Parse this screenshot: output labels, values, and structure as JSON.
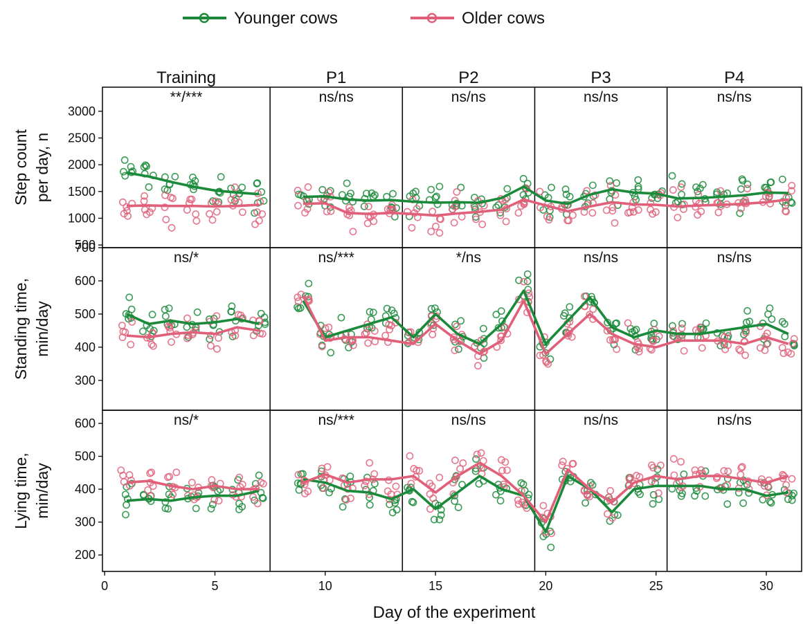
{
  "chart_data": {
    "type": "line",
    "xlabel": "Day of the experiment",
    "x_ticks": [
      0,
      5,
      10,
      15,
      20,
      25,
      30
    ],
    "xlim": [
      -0.1,
      31.6
    ],
    "legend": {
      "placement": "top",
      "items": [
        {
          "name": "Younger cows",
          "color": "#1a8a3a"
        },
        {
          "name": "Older cows",
          "color": "#e0607a"
        }
      ]
    },
    "periods": [
      {
        "label": "Training",
        "start": -0.1,
        "end": 7.5
      },
      {
        "label": "P1",
        "start": 7.5,
        "end": 13.5
      },
      {
        "label": "P2",
        "start": 13.5,
        "end": 19.5
      },
      {
        "label": "P3",
        "start": 19.5,
        "end": 25.5
      },
      {
        "label": "P4",
        "start": 25.5,
        "end": 31.6
      }
    ],
    "days": [
      1,
      2,
      3,
      4,
      5,
      6,
      7,
      9,
      10,
      11,
      12,
      13,
      14,
      15,
      16,
      17,
      18,
      19,
      20,
      21,
      22,
      23,
      24,
      25,
      26,
      27,
      28,
      29,
      30,
      31
    ],
    "panels": [
      {
        "ylabel_lines": [
          "Step count",
          "per day, n"
        ],
        "ylim": [
          450,
          3450
        ],
        "y_ticks": [
          500,
          1000,
          1500,
          2000,
          2500,
          3000
        ],
        "significance": [
          "**/***",
          "ns/ns",
          "ns/ns",
          "ns/ns",
          "ns/ns"
        ],
        "series": [
          {
            "name": "Younger cows",
            "values": [
              1850,
              1780,
              1680,
              1590,
              1520,
              1480,
              1450,
              1400,
              1410,
              1350,
              1330,
              1340,
              1310,
              1290,
              1300,
              1290,
              1380,
              1590,
              1330,
              1270,
              1440,
              1540,
              1480,
              1460,
              1370,
              1380,
              1400,
              1430,
              1480,
              1470
            ]
          },
          {
            "name": "Older cows",
            "values": [
              1230,
              1240,
              1230,
              1230,
              1220,
              1230,
              1250,
              1270,
              1280,
              1100,
              1080,
              1100,
              1080,
              1050,
              1090,
              1120,
              1160,
              1350,
              1240,
              1130,
              1220,
              1300,
              1260,
              1250,
              1220,
              1240,
              1250,
              1270,
              1300,
              1350
            ]
          }
        ]
      },
      {
        "ylabel_lines": [
          "Standing time,",
          "min/day"
        ],
        "ylim": [
          210,
          700
        ],
        "y_ticks": [
          300,
          400,
          500,
          600,
          700
        ],
        "significance": [
          "ns/*",
          "ns/***",
          "*/ns",
          "ns/ns",
          "ns/ns"
        ],
        "series": [
          {
            "name": "Younger cows",
            "values": [
              500,
              470,
              480,
              470,
              475,
              485,
              470,
              540,
              430,
              450,
              470,
              490,
              430,
              500,
              440,
              410,
              470,
              570,
              410,
              480,
              550,
              460,
              430,
              450,
              440,
              440,
              450,
              460,
              470,
              440
            ]
          },
          {
            "name": "Older cows",
            "values": [
              435,
              430,
              440,
              445,
              440,
              460,
              450,
              555,
              420,
              430,
              430,
              420,
              410,
              470,
              420,
              380,
              420,
              540,
              380,
              440,
              500,
              440,
              410,
              400,
              420,
              420,
              420,
              410,
              430,
              410
            ]
          }
        ]
      },
      {
        "ylabel_lines": [
          "Lying time,",
          "min/day"
        ],
        "ylim": [
          150,
          640
        ],
        "y_ticks": [
          200,
          300,
          400,
          500,
          600
        ],
        "significance": [
          "ns/*",
          "ns/***",
          "ns/ns",
          "ns/ns",
          "ns/ns"
        ],
        "series": [
          {
            "name": "Younger cows",
            "values": [
              365,
              370,
              365,
              375,
              380,
              380,
              395,
              430,
              420,
              395,
              390,
              370,
              400,
              340,
              390,
              440,
              400,
              380,
              270,
              440,
              400,
              330,
              400,
              410,
              410,
              410,
              400,
              400,
              380,
              390
            ]
          },
          {
            "name": "Older cows",
            "values": [
              420,
              425,
              410,
              400,
              410,
              400,
              400,
              420,
              445,
              420,
              430,
              430,
              440,
              390,
              440,
              480,
              440,
              380,
              300,
              460,
              400,
              360,
              420,
              440,
              430,
              440,
              440,
              430,
              420,
              440
            ]
          }
        ]
      }
    ]
  }
}
